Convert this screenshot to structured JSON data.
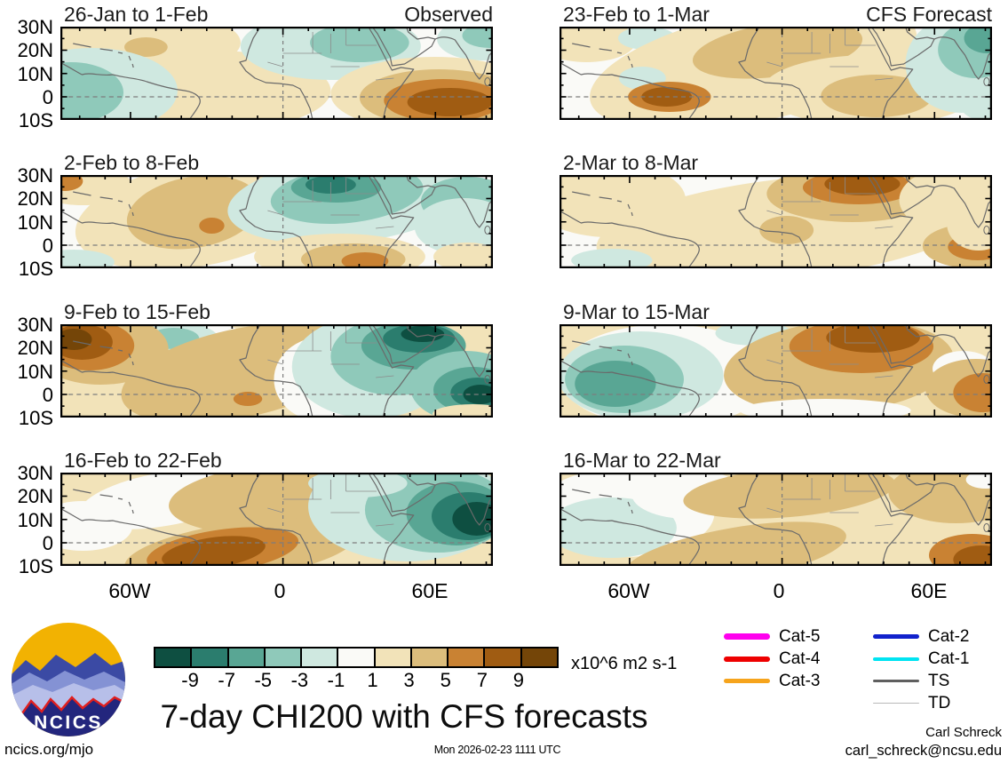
{
  "main_title": "7-day CHI200 with CFS forecasts",
  "logo": {
    "text": "NCICS"
  },
  "footer": {
    "left_link": "ncics.org/mjo",
    "center_timestamp": "Mon 2026-02-23 1111 UTC",
    "right_name": "Carl Schreck",
    "right_email": "carl_schreck@ncsu.edu"
  },
  "legend": {
    "items": [
      {
        "label": "Cat-5",
        "color": "#ff00ee",
        "lw": 7,
        "col": 0
      },
      {
        "label": "Cat-4",
        "color": "#ee0000",
        "lw": 6,
        "col": 0
      },
      {
        "label": "Cat-3",
        "color": "#f6a41c",
        "lw": 5,
        "col": 0
      },
      {
        "label": "Cat-2",
        "color": "#1122cc",
        "lw": 5,
        "col": 1
      },
      {
        "label": "Cat-1",
        "color": "#00e4f2",
        "lw": 4,
        "col": 1
      },
      {
        "label": "TS",
        "color": "#5f5f5f",
        "lw": 3,
        "col": 1
      },
      {
        "label": "TD",
        "color": "#b9b9b9",
        "lw": 1.5,
        "col": 1
      }
    ]
  },
  "chart_data": {
    "type": "heatmap",
    "subtype": "filled-contour-anomaly-maps",
    "field": "CHI200 velocity potential anomaly",
    "units": "x10^6 m2 s-1",
    "columns": [
      "Observed",
      "CFS Forecast"
    ],
    "axes": {
      "y_labels": [
        "30N",
        "20N",
        "10N",
        "0",
        "10S"
      ],
      "x_labels": [
        "60W",
        "0",
        "60E"
      ],
      "lat_range": [
        30,
        -10
      ],
      "lon_range": [
        -87,
        83
      ]
    },
    "colorbar": {
      "tick_labels": [
        "-9",
        "-7",
        "-5",
        "-3",
        "-1",
        "1",
        "3",
        "5",
        "7",
        "9"
      ],
      "colors": [
        "#0e4f41",
        "#2b7d6e",
        "#59a694",
        "#8fc9ba",
        "#cfe8e0",
        "#fafaf7",
        "#f2e3b9",
        "#dcbd7c",
        "#c98233",
        "#a05c12",
        "#744508"
      ],
      "levels": [
        -10,
        -8,
        -6,
        -4,
        -2,
        2,
        4,
        6,
        8,
        10
      ]
    },
    "panels": [
      {
        "title": "26-Jan to 1-Feb",
        "corner": "Observed",
        "col": 0,
        "row": 0,
        "base": 5,
        "blobs": [
          [
            6,
            70,
            18,
            130,
            40
          ],
          [
            6,
            170,
            72,
            130,
            45
          ],
          [
            7,
            95,
            23,
            24,
            11
          ],
          [
            4,
            35,
            72,
            95,
            48
          ],
          [
            3,
            12,
            74,
            58,
            34
          ],
          [
            4,
            300,
            22,
            100,
            38
          ],
          [
            3,
            332,
            18,
            55,
            22
          ],
          [
            4,
            468,
            14,
            50,
            24
          ],
          [
            3,
            476,
            10,
            30,
            14
          ],
          [
            6,
            415,
            76,
            115,
            42
          ],
          [
            7,
            420,
            80,
            88,
            32
          ],
          [
            8,
            425,
            83,
            66,
            24
          ],
          [
            9,
            432,
            85,
            47,
            16
          ]
        ]
      },
      {
        "title": "2-Feb to 8-Feb",
        "corner": "",
        "col": 0,
        "row": 1,
        "base": 5,
        "blobs": [
          [
            6,
            25,
            12,
            55,
            22
          ],
          [
            8,
            5,
            7,
            20,
            11
          ],
          [
            6,
            150,
            45,
            135,
            58,
            -10
          ],
          [
            7,
            148,
            42,
            75,
            40,
            -10
          ],
          [
            8,
            168,
            57,
            14,
            9
          ],
          [
            4,
            15,
            98,
            45,
            14
          ],
          [
            4,
            320,
            28,
            135,
            48,
            -6
          ],
          [
            3,
            318,
            22,
            85,
            32,
            -6
          ],
          [
            2,
            306,
            14,
            50,
            17
          ],
          [
            1,
            300,
            11,
            28,
            10
          ],
          [
            3,
            452,
            30,
            52,
            28
          ],
          [
            4,
            448,
            58,
            55,
            32
          ],
          [
            6,
            310,
            92,
            95,
            26
          ],
          [
            7,
            325,
            95,
            58,
            18
          ],
          [
            8,
            338,
            97,
            26,
            10
          ],
          [
            6,
            452,
            92,
            38,
            16
          ]
        ]
      },
      {
        "title": "9-Feb to 15-Feb",
        "corner": "",
        "col": 0,
        "row": 2,
        "base": 6,
        "blobs": [
          [
            5,
            135,
            28,
            75,
            38
          ],
          [
            4,
            128,
            21,
            50,
            24
          ],
          [
            3,
            126,
            16,
            28,
            12
          ],
          [
            7,
            200,
            55,
            135,
            50,
            -12
          ],
          [
            7,
            45,
            28,
            75,
            40
          ],
          [
            8,
            32,
            24,
            50,
            28
          ],
          [
            9,
            24,
            20,
            34,
            20
          ],
          [
            10,
            15,
            17,
            20,
            12
          ],
          [
            8,
            208,
            84,
            16,
            8
          ],
          [
            5,
            292,
            62,
            55,
            48
          ],
          [
            4,
            345,
            48,
            88,
            58
          ],
          [
            3,
            372,
            36,
            72,
            44
          ],
          [
            2,
            392,
            24,
            58,
            27
          ],
          [
            1,
            398,
            16,
            40,
            16
          ],
          [
            0,
            402,
            11,
            24,
            9
          ],
          [
            3,
            450,
            70,
            62,
            40
          ],
          [
            2,
            458,
            74,
            44,
            26
          ],
          [
            1,
            463,
            77,
            30,
            17
          ],
          [
            0,
            466,
            79,
            19,
            11
          ],
          [
            6,
            458,
            101,
            45,
            11
          ]
        ]
      },
      {
        "title": "16-Feb to 22-Feb",
        "corner": "",
        "col": 0,
        "row": 3,
        "base": 6,
        "blobs": [
          [
            5,
            115,
            30,
            95,
            30,
            -10
          ],
          [
            5,
            25,
            60,
            55,
            28
          ],
          [
            7,
            265,
            28,
            145,
            42,
            -4
          ],
          [
            7,
            200,
            88,
            130,
            32,
            -8
          ],
          [
            8,
            180,
            88,
            85,
            24,
            -8
          ],
          [
            9,
            170,
            90,
            58,
            17,
            -8
          ],
          [
            4,
            385,
            38,
            110,
            62
          ],
          [
            3,
            418,
            42,
            80,
            48
          ],
          [
            2,
            440,
            46,
            56,
            36
          ],
          [
            1,
            453,
            49,
            41,
            27
          ],
          [
            0,
            462,
            52,
            27,
            19
          ],
          [
            4,
            330,
            12,
            55,
            16
          ]
        ]
      },
      {
        "title": "23-Feb to 1-Mar",
        "corner": "CFS Forecast",
        "col": 1,
        "row": 0,
        "base": 5,
        "blobs": [
          [
            6,
            30,
            16,
            55,
            24
          ],
          [
            4,
            97,
            13,
            32,
            13
          ],
          [
            6,
            215,
            45,
            185,
            62,
            -12
          ],
          [
            7,
            242,
            26,
            95,
            30,
            -8
          ],
          [
            6,
            345,
            72,
            120,
            40
          ],
          [
            7,
            352,
            78,
            62,
            24
          ],
          [
            4,
            92,
            58,
            26,
            13
          ],
          [
            8,
            122,
            79,
            46,
            17
          ],
          [
            9,
            119,
            79,
            28,
            11
          ],
          [
            4,
            446,
            42,
            62,
            55
          ],
          [
            3,
            462,
            26,
            42,
            32
          ],
          [
            2,
            475,
            13,
            26,
            17
          ],
          [
            4,
            472,
            82,
            30,
            24
          ]
        ]
      },
      {
        "title": "2-Mar to 8-Mar",
        "corner": "",
        "col": 1,
        "row": 1,
        "base": 5,
        "blobs": [
          [
            6,
            55,
            28,
            85,
            42
          ],
          [
            6,
            255,
            60,
            215,
            56,
            -6
          ],
          [
            7,
            252,
            62,
            30,
            16
          ],
          [
            7,
            325,
            21,
            95,
            32
          ],
          [
            8,
            332,
            14,
            62,
            19
          ],
          [
            9,
            336,
            10,
            42,
            13
          ],
          [
            6,
            442,
            28,
            65,
            38
          ],
          [
            7,
            458,
            80,
            55,
            25
          ],
          [
            8,
            464,
            81,
            33,
            15
          ],
          [
            4,
            58,
            96,
            45,
            13
          ],
          [
            6,
            465,
            55,
            35,
            30
          ]
        ]
      },
      {
        "title": "9-Mar to 15-Mar",
        "corner": "",
        "col": 1,
        "row": 2,
        "base": 6,
        "blobs": [
          [
            5,
            118,
            58,
            118,
            58
          ],
          [
            4,
            90,
            58,
            92,
            50
          ],
          [
            3,
            72,
            62,
            66,
            38
          ],
          [
            2,
            62,
            67,
            45,
            26
          ],
          [
            4,
            215,
            10,
            42,
            14
          ],
          [
            7,
            310,
            48,
            128,
            52,
            -5
          ],
          [
            8,
            335,
            25,
            80,
            30
          ],
          [
            9,
            348,
            15,
            52,
            17
          ],
          [
            5,
            448,
            50,
            34,
            20
          ],
          [
            7,
            462,
            72,
            56,
            33
          ],
          [
            8,
            470,
            77,
            33,
            22
          ],
          [
            5,
            295,
            97,
            95,
            13
          ]
        ]
      },
      {
        "title": "16-Mar to 22-Mar",
        "corner": "",
        "col": 1,
        "row": 3,
        "base": 6,
        "blobs": [
          [
            5,
            72,
            45,
            100,
            50
          ],
          [
            4,
            58,
            62,
            72,
            34
          ],
          [
            5,
            142,
            24,
            62,
            28
          ],
          [
            7,
            255,
            22,
            118,
            28,
            -5
          ],
          [
            7,
            195,
            92,
            125,
            30,
            -10
          ],
          [
            7,
            440,
            22,
            75,
            35
          ],
          [
            8,
            458,
            93,
            48,
            24
          ],
          [
            9,
            468,
            98,
            31,
            16
          ],
          [
            5,
            473,
            8,
            22,
            10
          ]
        ]
      }
    ]
  }
}
